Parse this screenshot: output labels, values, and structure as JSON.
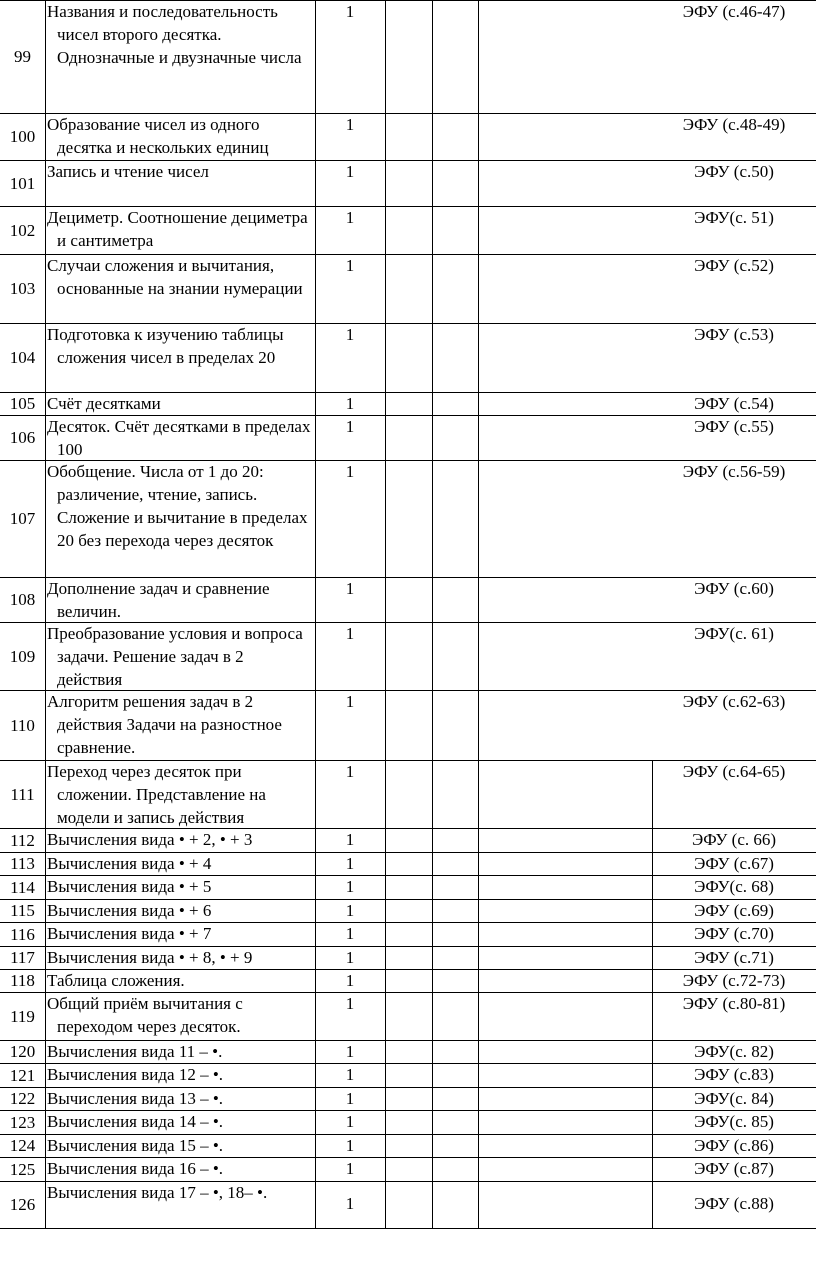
{
  "table": {
    "rows": [
      {
        "num": "99",
        "topic": "Названия и последовательность чисел второго десятка. Однозначные и двузначные числа",
        "hours": "1",
        "resource": "ЭФУ (с.46-47)"
      },
      {
        "num": "100",
        "topic": "Образование чисел из одного десятка и нескольких единиц",
        "hours": "1",
        "resource": "ЭФУ (с.48-49)"
      },
      {
        "num": "101",
        "topic": "Запись и чтение чисел",
        "hours": "1",
        "resource": "ЭФУ (с.50)"
      },
      {
        "num": "102",
        "topic": "Дециметр. Соотношение дециметра и сантиметра",
        "hours": "1",
        "resource": "ЭФУ(с. 51)"
      },
      {
        "num": "103",
        "topic": "Случаи сложения и вычитания, основанные на знании нумерации",
        "hours": "1",
        "resource": "ЭФУ (с.52)"
      },
      {
        "num": "104",
        "topic": "Подготовка к изучению таблицы сложения чисел в пределах 20",
        "hours": "1",
        "resource": "ЭФУ (с.53)"
      },
      {
        "num": "105",
        "topic": "Счёт десятками",
        "hours": "1",
        "resource": "ЭФУ (с.54)"
      },
      {
        "num": "106",
        "topic": "Десяток. Счёт десятками в пределах 100",
        "hours": "1",
        "resource": "ЭФУ (с.55)"
      },
      {
        "num": "107",
        "topic": "Обобщение. Числа от 1 до 20: различение, чтение, запись. Сложение и вычитание в пределах 20 без перехода через десяток",
        "hours": "1",
        "resource": "ЭФУ (с.56-59)"
      },
      {
        "num": "108",
        "topic": "Дополнение задач и сравнение величин.",
        "hours": "1",
        "resource": "ЭФУ (с.60)"
      },
      {
        "num": "109",
        "topic": "Преобразование условия и вопроса задачи. Решение задач в 2 действия",
        "hours": "1",
        "resource": "ЭФУ(с. 61)"
      },
      {
        "num": "110",
        "topic": "Алгоритм решения задач в 2 действия Задачи на разностное сравнение.",
        "hours": "1",
        "resource": "ЭФУ (с.62-63)"
      },
      {
        "num": "111",
        "topic": "Переход через десяток при сложении. Представление на модели и запись действия",
        "hours": "1",
        "resource": "ЭФУ (с.64-65)"
      },
      {
        "num": "112",
        "topic": "Вычисления вида • + 2, • + 3",
        "hours": "1",
        "resource": "ЭФУ (с. 66)"
      },
      {
        "num": "113",
        "topic": "Вычисления вида • + 4",
        "hours": "1",
        "resource": "ЭФУ (с.67)"
      },
      {
        "num": "114",
        "topic": "Вычисления вида • + 5",
        "hours": "1",
        "resource": "ЭФУ(с. 68)"
      },
      {
        "num": "115",
        "topic": "Вычисления вида • + 6",
        "hours": "1",
        "resource": "ЭФУ (с.69)"
      },
      {
        "num": "116",
        "topic": "Вычисления вида • + 7",
        "hours": "1",
        "resource": "ЭФУ (с.70)"
      },
      {
        "num": "117",
        "topic": "Вычисления вида • + 8, • + 9",
        "hours": "1",
        "resource": "ЭФУ (с.71)"
      },
      {
        "num": "118",
        "topic": "Таблица сложения.",
        "hours": "1",
        "resource": "ЭФУ (с.72-73)"
      },
      {
        "num": "119",
        "topic": "Общий приём вычитания с переходом через десяток.",
        "hours": "1",
        "resource": "ЭФУ (с.80-81)"
      },
      {
        "num": "120",
        "topic": "Вычисления вида 11 – •.",
        "hours": "1",
        "resource": "ЭФУ(с. 82)"
      },
      {
        "num": "121",
        "topic": "Вычисления вида 12 – •.",
        "hours": "1",
        "resource": "ЭФУ (с.83)"
      },
      {
        "num": "122",
        "topic": "Вычисления вида 13 – •.",
        "hours": "1",
        "resource": "ЭФУ(с. 84)"
      },
      {
        "num": "123",
        "topic": "Вычисления вида 14 – •.",
        "hours": "1",
        "resource": "ЭФУ(с. 85)"
      },
      {
        "num": "124",
        "topic": "Вычисления вида 15 – •.",
        "hours": "1",
        "resource": "ЭФУ (с.86)"
      },
      {
        "num": "125",
        "topic": "Вычисления вида 16 – •.",
        "hours": "1",
        "resource": "ЭФУ (с.87)"
      },
      {
        "num": "126",
        "topic": "Вычисления вида 17 – •, 18– •.",
        "hours": "1",
        "resource": "ЭФУ (с.88)"
      }
    ]
  }
}
